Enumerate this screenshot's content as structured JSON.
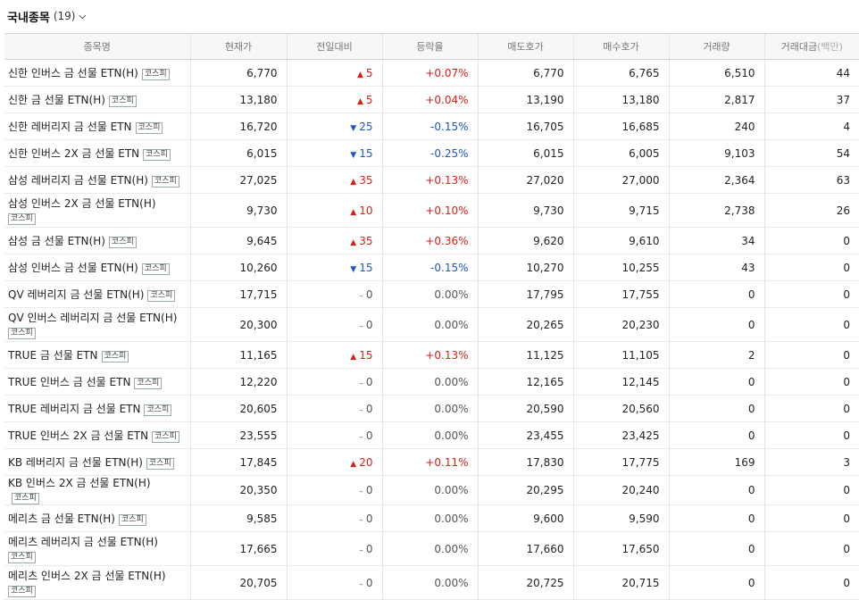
{
  "section": {
    "title": "국내종목",
    "count": "(19)"
  },
  "columns": [
    "종목명",
    "현재가",
    "전일대비",
    "등락율",
    "매도호가",
    "매수호가",
    "거래량",
    "거래대금"
  ],
  "amount_unit": "(백만)",
  "badge_label": "코스피",
  "colors": {
    "up": "#d91e18",
    "down": "#1e55c8",
    "flat": "#555555"
  },
  "rows": [
    {
      "name": "신한 인버스 금 선물 ETN(H)",
      "price": "6,770",
      "dir": "up",
      "arrow": "▲",
      "change": "5",
      "rate": "+0.07%",
      "ask": "6,770",
      "bid": "6,765",
      "volume": "6,510",
      "amount": "44",
      "tall": false,
      "group_start": false
    },
    {
      "name": "신한 금 선물 ETN(H)",
      "price": "13,180",
      "dir": "up",
      "arrow": "▲",
      "change": "5",
      "rate": "+0.04%",
      "ask": "13,190",
      "bid": "13,180",
      "volume": "2,817",
      "amount": "37",
      "tall": false,
      "group_start": false
    },
    {
      "name": "신한 레버리지 금 선물 ETN",
      "price": "16,720",
      "dir": "down",
      "arrow": "▼",
      "change": "25",
      "rate": "-0.15%",
      "ask": "16,705",
      "bid": "16,685",
      "volume": "240",
      "amount": "4",
      "tall": false,
      "group_start": false
    },
    {
      "name": "신한 인버스 2X 금 선물 ETN",
      "price": "6,015",
      "dir": "down",
      "arrow": "▼",
      "change": "15",
      "rate": "-0.25%",
      "ask": "6,015",
      "bid": "6,005",
      "volume": "9,103",
      "amount": "54",
      "tall": false,
      "group_start": false
    },
    {
      "name": "삼성 레버리지 금 선물 ETN(H)",
      "price": "27,025",
      "dir": "up",
      "arrow": "▲",
      "change": "35",
      "rate": "+0.13%",
      "ask": "27,020",
      "bid": "27,000",
      "volume": "2,364",
      "amount": "63",
      "tall": false,
      "group_start": false
    },
    {
      "name": "삼성 인버스 2X 금 선물 ETN(H)",
      "price": "9,730",
      "dir": "up",
      "arrow": "▲",
      "change": "10",
      "rate": "+0.10%",
      "ask": "9,730",
      "bid": "9,715",
      "volume": "2,738",
      "amount": "26",
      "tall": true,
      "group_start": true
    },
    {
      "name": "삼성 금 선물 ETN(H)",
      "price": "9,645",
      "dir": "up",
      "arrow": "▲",
      "change": "35",
      "rate": "+0.36%",
      "ask": "9,620",
      "bid": "9,610",
      "volume": "34",
      "amount": "0",
      "tall": false,
      "group_start": false
    },
    {
      "name": "삼성 인버스 금 선물 ETN(H)",
      "price": "10,260",
      "dir": "down",
      "arrow": "▼",
      "change": "15",
      "rate": "-0.15%",
      "ask": "10,270",
      "bid": "10,255",
      "volume": "43",
      "amount": "0",
      "tall": false,
      "group_start": false
    },
    {
      "name": "QV 레버리지 금 선물 ETN(H)",
      "price": "17,715",
      "dir": "flat",
      "arrow": "–",
      "change": "0",
      "rate": "0.00%",
      "ask": "17,795",
      "bid": "17,755",
      "volume": "0",
      "amount": "0",
      "tall": false,
      "group_start": false
    },
    {
      "name": "QV 인버스 레버리지 금 선물 ETN(H)",
      "price": "20,300",
      "dir": "flat",
      "arrow": "–",
      "change": "0",
      "rate": "0.00%",
      "ask": "20,265",
      "bid": "20,230",
      "volume": "0",
      "amount": "0",
      "tall": true,
      "group_start": false
    },
    {
      "name": "TRUE 금 선물 ETN",
      "price": "11,165",
      "dir": "up",
      "arrow": "▲",
      "change": "15",
      "rate": "+0.13%",
      "ask": "11,125",
      "bid": "11,105",
      "volume": "2",
      "amount": "0",
      "tall": false,
      "group_start": true
    },
    {
      "name": "TRUE 인버스 금 선물 ETN",
      "price": "12,220",
      "dir": "flat",
      "arrow": "–",
      "change": "0",
      "rate": "0.00%",
      "ask": "12,165",
      "bid": "12,145",
      "volume": "0",
      "amount": "0",
      "tall": false,
      "group_start": false
    },
    {
      "name": "TRUE 레버리지 금 선물 ETN",
      "price": "20,605",
      "dir": "flat",
      "arrow": "–",
      "change": "0",
      "rate": "0.00%",
      "ask": "20,590",
      "bid": "20,560",
      "volume": "0",
      "amount": "0",
      "tall": false,
      "group_start": false
    },
    {
      "name": "TRUE 인버스 2X 금 선물 ETN",
      "price": "23,555",
      "dir": "flat",
      "arrow": "–",
      "change": "0",
      "rate": "0.00%",
      "ask": "23,455",
      "bid": "23,425",
      "volume": "0",
      "amount": "0",
      "tall": false,
      "group_start": false
    },
    {
      "name": "KB 레버리지 금 선물 ETN(H)",
      "price": "17,845",
      "dir": "up",
      "arrow": "▲",
      "change": "20",
      "rate": "+0.11%",
      "ask": "17,830",
      "bid": "17,775",
      "volume": "169",
      "amount": "3",
      "tall": false,
      "group_start": false
    },
    {
      "name": "KB 인버스 2X 금 선물 ETN(H)",
      "price": "20,350",
      "dir": "flat",
      "arrow": "–",
      "change": "0",
      "rate": "0.00%",
      "ask": "20,295",
      "bid": "20,240",
      "volume": "0",
      "amount": "0",
      "tall": false,
      "group_start": true
    },
    {
      "name": "메리츠 금 선물 ETN(H)",
      "price": "9,585",
      "dir": "flat",
      "arrow": "–",
      "change": "0",
      "rate": "0.00%",
      "ask": "9,600",
      "bid": "9,590",
      "volume": "0",
      "amount": "0",
      "tall": false,
      "group_start": false
    },
    {
      "name": "메리츠 레버리지 금 선물 ETN(H)",
      "price": "17,665",
      "dir": "flat",
      "arrow": "–",
      "change": "0",
      "rate": "0.00%",
      "ask": "17,660",
      "bid": "17,650",
      "volume": "0",
      "amount": "0",
      "tall": true,
      "group_start": false
    },
    {
      "name": "메리츠 인버스 2X 금 선물 ETN(H)",
      "price": "20,705",
      "dir": "flat",
      "arrow": "–",
      "change": "0",
      "rate": "0.00%",
      "ask": "20,725",
      "bid": "20,715",
      "volume": "0",
      "amount": "0",
      "tall": true,
      "group_start": false
    }
  ]
}
